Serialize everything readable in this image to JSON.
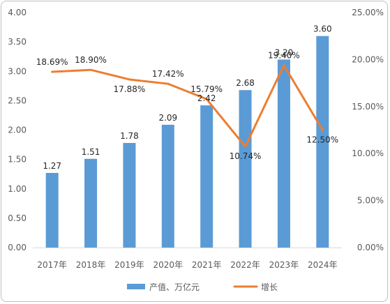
{
  "chart_data": {
    "type": "bar",
    "title": "",
    "categories": [
      "2017年",
      "2018年",
      "2019年",
      "2020年",
      "2021年",
      "2022年",
      "2023年",
      "2024年"
    ],
    "series": [
      {
        "name": "产值、万亿元",
        "type": "bar",
        "axis": "left",
        "color": "#5b9bd5",
        "values": [
          1.27,
          1.51,
          1.78,
          2.09,
          2.42,
          2.68,
          3.2,
          3.6
        ],
        "labels": [
          "1.27",
          "1.51",
          "1.78",
          "2.09",
          "2.42",
          "2.68",
          "3.20",
          "3.60"
        ]
      },
      {
        "name": "增长",
        "type": "line",
        "axis": "right",
        "color": "#ed7d31",
        "values": [
          18.69,
          18.9,
          17.88,
          17.42,
          15.79,
          10.74,
          19.4,
          12.5
        ],
        "labels": [
          "18.69%",
          "18.90%",
          "17.88%",
          "17.42%",
          "15.79%",
          "10.74%",
          "19.40%",
          "12.50%"
        ]
      }
    ],
    "left_axis": {
      "ylim": [
        0,
        4
      ],
      "ticks": [
        "0.00",
        "0.50",
        "1.00",
        "1.50",
        "2.00",
        "2.50",
        "3.00",
        "3.50",
        "4.00"
      ]
    },
    "right_axis": {
      "ylim": [
        0,
        25
      ],
      "ticks": [
        "0.00%",
        "5.00%",
        "10.00%",
        "15.00%",
        "20.00%",
        "25.00%"
      ]
    },
    "legend": {
      "position": "bottom"
    },
    "grid": false
  }
}
